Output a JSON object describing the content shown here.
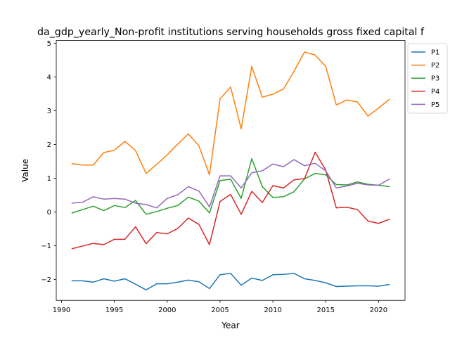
{
  "chart_data": {
    "type": "line",
    "title": "da_gdp_yearly_Non-profit institutions serving households gross fixed capital f",
    "xlabel": "Year",
    "ylabel": "Value",
    "xlim": [
      1989.5,
      2022.5
    ],
    "ylim": [
      -2.62,
      5.08
    ],
    "xticks": [
      1990,
      1995,
      2000,
      2005,
      2010,
      2015,
      2020
    ],
    "yticks": [
      -2,
      -1,
      0,
      1,
      2,
      3,
      4,
      5
    ],
    "ytick_labels": [
      "−2",
      "−1",
      "0",
      "1",
      "2",
      "3",
      "4",
      "5"
    ],
    "grid": false,
    "legend_position": "outside-upper-right",
    "x": [
      1991,
      1992,
      1993,
      1994,
      1995,
      1996,
      1997,
      1998,
      1999,
      2000,
      2001,
      2002,
      2003,
      2004,
      2005,
      2006,
      2007,
      2008,
      2009,
      2010,
      2011,
      2012,
      2013,
      2014,
      2015,
      2016,
      2017,
      2018,
      2019,
      2020,
      2021
    ],
    "series": [
      {
        "name": "P1",
        "color": "#1f77b4",
        "values": [
          -2.04,
          -2.04,
          -2.08,
          -1.98,
          -2.05,
          -1.98,
          -2.14,
          -2.31,
          -2.13,
          -2.13,
          -2.08,
          -2.02,
          -2.07,
          -2.27,
          -1.86,
          -1.82,
          -2.17,
          -1.96,
          -2.03,
          -1.86,
          -1.85,
          -1.82,
          -1.98,
          -2.03,
          -2.1,
          -2.21,
          -2.2,
          -2.19,
          -2.19,
          -2.2,
          -2.15
        ]
      },
      {
        "name": "P2",
        "color": "#ff7f0e",
        "values": [
          1.43,
          1.39,
          1.39,
          1.76,
          1.83,
          2.09,
          1.82,
          1.14,
          1.41,
          1.69,
          2.01,
          2.31,
          1.96,
          1.1,
          3.35,
          3.7,
          2.46,
          4.31,
          3.4,
          3.49,
          3.64,
          4.17,
          4.74,
          4.65,
          4.31,
          3.17,
          3.32,
          3.26,
          2.84,
          3.08,
          3.33
        ]
      },
      {
        "name": "P3",
        "color": "#2ca02c",
        "values": [
          -0.03,
          0.07,
          0.17,
          0.04,
          0.19,
          0.13,
          0.34,
          -0.07,
          0.01,
          0.11,
          0.19,
          0.44,
          0.32,
          -0.03,
          0.93,
          0.97,
          0.4,
          1.58,
          0.75,
          0.43,
          0.45,
          0.6,
          0.98,
          1.14,
          1.1,
          0.81,
          0.8,
          0.89,
          0.82,
          0.79,
          0.75
        ]
      },
      {
        "name": "P4",
        "color": "#d62728",
        "values": [
          -1.09,
          -1.01,
          -0.93,
          -0.97,
          -0.81,
          -0.81,
          -0.44,
          -0.94,
          -0.61,
          -0.65,
          -0.49,
          -0.18,
          -0.37,
          -0.97,
          0.31,
          0.52,
          -0.07,
          0.61,
          0.28,
          0.78,
          0.71,
          0.95,
          0.99,
          1.77,
          1.24,
          0.12,
          0.14,
          0.07,
          -0.27,
          -0.34,
          -0.22
        ]
      },
      {
        "name": "P5",
        "color": "#9467bd",
        "values": [
          0.26,
          0.29,
          0.45,
          0.38,
          0.4,
          0.38,
          0.26,
          0.22,
          0.12,
          0.4,
          0.51,
          0.75,
          0.62,
          0.15,
          1.07,
          1.07,
          0.71,
          1.16,
          1.22,
          1.42,
          1.34,
          1.55,
          1.37,
          1.44,
          1.22,
          0.71,
          0.77,
          0.85,
          0.8,
          0.79,
          0.97
        ]
      }
    ]
  }
}
